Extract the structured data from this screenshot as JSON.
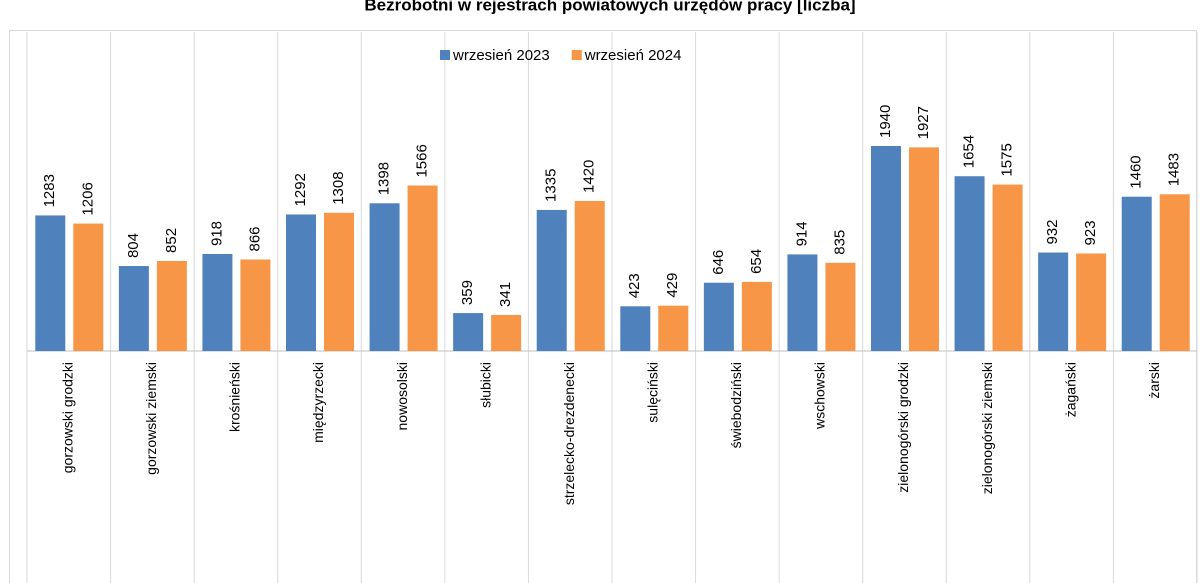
{
  "chart_data": {
    "type": "bar",
    "title": "Bezrobotni w rejestrach powiatowych urzędów pracy [liczba]",
    "categories": [
      "gorzowski grodzki",
      "gorzowski ziemski",
      "krośnieński",
      "międzyrzecki",
      "nowosolski",
      "słubicki",
      "strzelecko-drezdenecki",
      "sulęciński",
      "świebodziński",
      "wschowski",
      "zielonogórski grodzki",
      "zielonogórski ziemski",
      "żagański",
      "żarski"
    ],
    "series": [
      {
        "name": "wrzesień 2023",
        "color": "#4f81bd",
        "values": [
          1283,
          804,
          918,
          1292,
          1398,
          359,
          1335,
          423,
          646,
          914,
          1940,
          1654,
          932,
          1460
        ]
      },
      {
        "name": "wrzesień 2024",
        "color": "#f79646",
        "values": [
          1206,
          852,
          866,
          1308,
          1566,
          341,
          1420,
          429,
          654,
          835,
          1927,
          1575,
          923,
          1483
        ]
      }
    ],
    "ylim": [
      0,
      3000
    ],
    "legend": "top"
  }
}
